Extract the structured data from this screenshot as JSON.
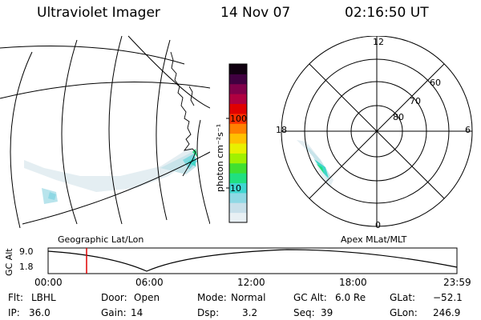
{
  "header": {
    "instrument": "Ultraviolet Imager",
    "date": "14 Nov 07",
    "time": "02:16:50 UT"
  },
  "colorbar": {
    "unit_label": "photon cm⁻²s⁻¹",
    "ticks": [
      "100",
      "10"
    ],
    "colors": [
      "#e8f0f4",
      "#c8e0ea",
      "#8fd8e4",
      "#3fd6d0",
      "#20e080",
      "#40e030",
      "#a0f000",
      "#e8f000",
      "#ffc000",
      "#ff8000",
      "#ff3000",
      "#e00000",
      "#b00040",
      "#80004a",
      "#400040",
      "#100010"
    ]
  },
  "polar": {
    "top_label": "12",
    "left_label": "18",
    "right_label": "6",
    "bottom_label": "0",
    "lat_labels": [
      "60",
      "70",
      "80"
    ]
  },
  "timeline": {
    "left_title": "Geographic Lat/Lon",
    "right_title": "Apex MLat/MLT",
    "y_axis_label": "GC Alt",
    "y_max": "9.0",
    "y_min": "1.8",
    "x_ticks": [
      "00:00",
      "06:00",
      "12:00",
      "18:00",
      "23:59"
    ],
    "marker_color": "#e00000"
  },
  "info": {
    "filter_label": "Flt:",
    "filter_value": "LBHL",
    "ip_label": "IP:",
    "ip_value": "36.0",
    "door_label": "Door:",
    "door_value": "Open",
    "gain_label": "Gain:",
    "gain_value": "14",
    "mode_label": "Mode:",
    "mode_value": "Normal",
    "dsp_label": "Dsp:",
    "dsp_value": "3.2",
    "gcalt_label": "GC Alt:",
    "gcalt_value": "6.0 Re",
    "seq_label": "Seq:",
    "seq_value": "39",
    "glat_label": "GLat:",
    "glat_value": "−52.1",
    "glon_label": "GLon:",
    "glon_value": "246.9"
  }
}
